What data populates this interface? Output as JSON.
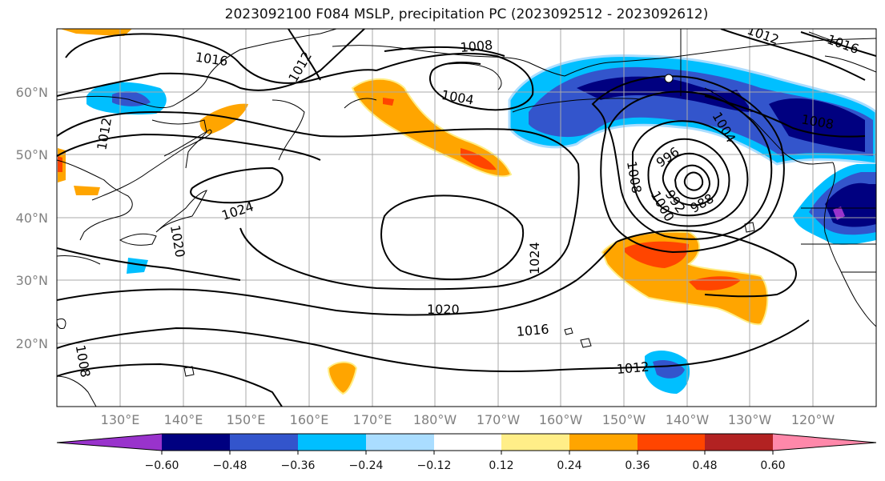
{
  "title": "2023092100 F084 MSLP, precipitation PC (2023092512 - 2023092612)",
  "lat_labels": [
    "60°N",
    "50°N",
    "40°N",
    "30°N",
    "20°N"
  ],
  "lon_labels": [
    "130°E",
    "140°E",
    "150°E",
    "160°E",
    "170°E",
    "180°W",
    "170°W",
    "160°W",
    "150°W",
    "140°W",
    "130°W",
    "120°W"
  ],
  "isobar_labels": [
    "1016",
    "1012",
    "1008",
    "1004",
    "1012",
    "1016",
    "1012",
    "1024",
    "1020",
    "1008",
    "996",
    "1004",
    "1008",
    "1000",
    "992",
    "988",
    "1024",
    "1020",
    "1016",
    "1012",
    "1008"
  ],
  "colorbar": {
    "tick_labels": [
      "−0.60",
      "−0.48",
      "−0.36",
      "−0.24",
      "−0.12",
      "0.12",
      "0.24",
      "0.36",
      "0.48",
      "0.60"
    ],
    "colors": [
      "#9933cc",
      "#000080",
      "#3355cc",
      "#00bfff",
      "#aaddff",
      "#ffffff",
      "#ffee88",
      "#ffa500",
      "#ff4500",
      "#b22222",
      "#ff88aa"
    ]
  }
}
